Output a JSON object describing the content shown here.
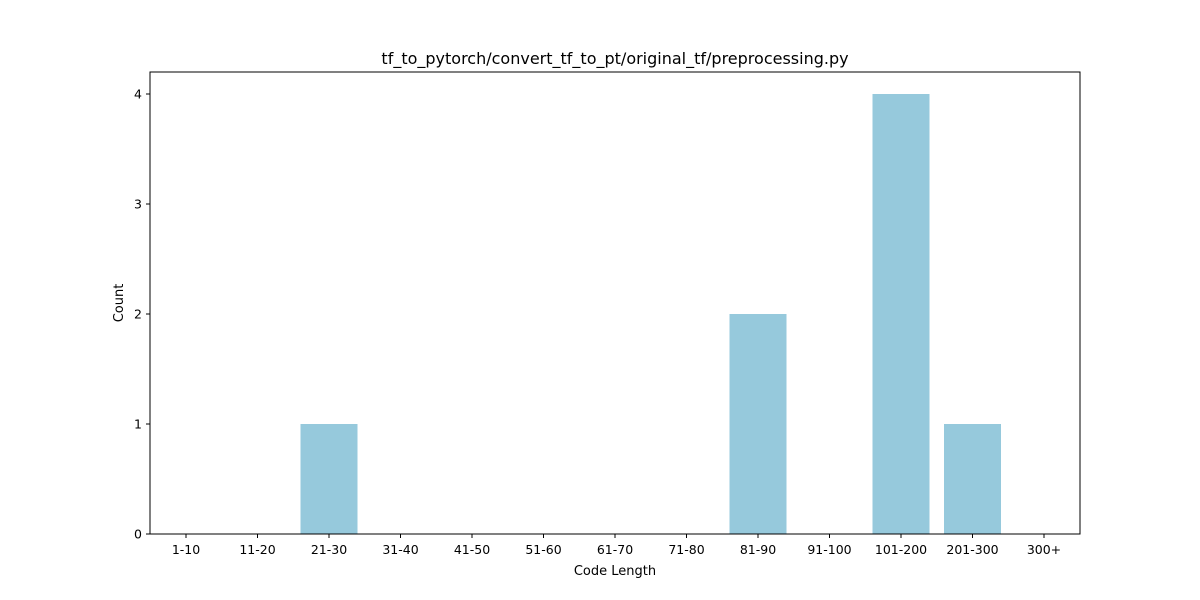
{
  "chart_data": {
    "type": "bar",
    "title": "tf_to_pytorch/convert_tf_to_pt/original_tf/preprocessing.py",
    "xlabel": "Code Length",
    "ylabel": "Count",
    "categories": [
      "1-10",
      "11-20",
      "21-30",
      "31-40",
      "41-50",
      "51-60",
      "61-70",
      "71-80",
      "81-90",
      "91-100",
      "101-200",
      "201-300",
      "300+"
    ],
    "values": [
      0,
      0,
      1,
      0,
      0,
      0,
      0,
      0,
      2,
      0,
      4,
      1,
      0
    ],
    "ylim": [
      0,
      4.2
    ],
    "yticks": [
      "0",
      "1",
      "2",
      "3",
      "4"
    ],
    "bar_color": "#96c9dc",
    "grid": false,
    "legend": "none"
  }
}
